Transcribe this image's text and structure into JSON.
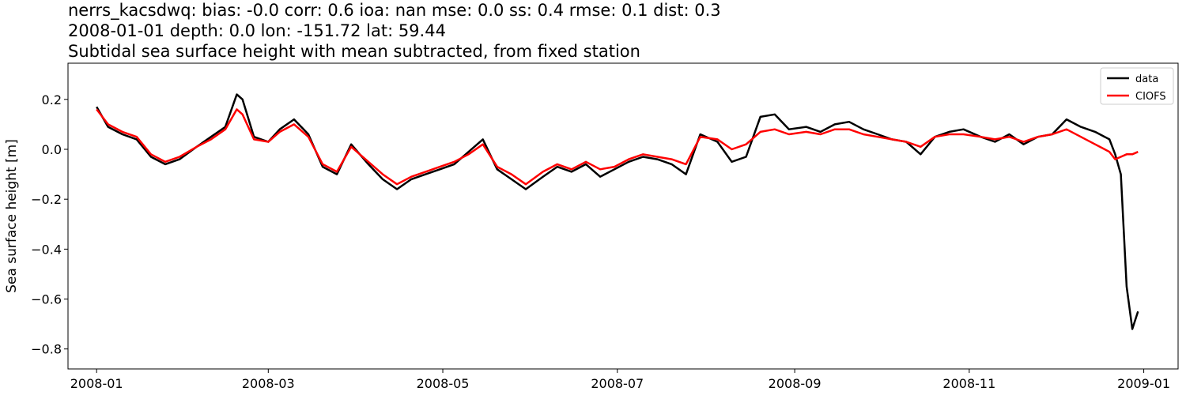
{
  "title_lines": [
    "nerrs_kacsdwq: bias: -0.0  corr: 0.6  ioa: nan  mse: 0.0  ss: 0.4  rmse: 0.1  dist: 0.3",
    "2008-01-01 depth: 0.0 lon: -151.72 lat: 59.44",
    "Subtidal sea surface height with mean subtracted, from fixed station"
  ],
  "chart_data": {
    "type": "line",
    "xlabel": "",
    "ylabel": "Sea surface height [m]",
    "xlim": [
      "2007-12-22",
      "2009-01-13"
    ],
    "ylim": [
      -0.88,
      0.345
    ],
    "x_ticks": [
      "2008-01",
      "2008-03",
      "2008-05",
      "2008-07",
      "2008-09",
      "2008-11",
      "2009-01"
    ],
    "y_ticks": [
      0.2,
      0.0,
      -0.2,
      -0.4,
      -0.6,
      -0.8
    ],
    "y_tick_labels": [
      "0.2",
      "0.0",
      "−0.2",
      "−0.4",
      "−0.6",
      "−0.8"
    ],
    "grid": false,
    "legend_position": "top-right",
    "colors": {
      "data": "#000000",
      "CIOFS": "#ff0000"
    },
    "series": [
      {
        "name": "data",
        "x": [
          "2008-01-01",
          "2008-01-05",
          "2008-01-10",
          "2008-01-15",
          "2008-01-20",
          "2008-01-25",
          "2008-01-30",
          "2008-02-05",
          "2008-02-10",
          "2008-02-15",
          "2008-02-19",
          "2008-02-21",
          "2008-02-25",
          "2008-03-01",
          "2008-03-05",
          "2008-03-10",
          "2008-03-15",
          "2008-03-20",
          "2008-03-25",
          "2008-03-30",
          "2008-04-05",
          "2008-04-10",
          "2008-04-15",
          "2008-04-20",
          "2008-04-25",
          "2008-04-30",
          "2008-05-05",
          "2008-05-10",
          "2008-05-15",
          "2008-05-20",
          "2008-05-25",
          "2008-05-30",
          "2008-06-05",
          "2008-06-10",
          "2008-06-15",
          "2008-06-20",
          "2008-06-25",
          "2008-06-30",
          "2008-07-05",
          "2008-07-10",
          "2008-07-15",
          "2008-07-20",
          "2008-07-25",
          "2008-07-30",
          "2008-08-05",
          "2008-08-10",
          "2008-08-15",
          "2008-08-20",
          "2008-08-25",
          "2008-08-30",
          "2008-09-05",
          "2008-09-10",
          "2008-09-15",
          "2008-09-20",
          "2008-09-25",
          "2008-09-30",
          "2008-10-05",
          "2008-10-10",
          "2008-10-15",
          "2008-10-20",
          "2008-10-25",
          "2008-10-30",
          "2008-11-05",
          "2008-11-10",
          "2008-11-15",
          "2008-11-20",
          "2008-11-25",
          "2008-11-30",
          "2008-12-05",
          "2008-12-10",
          "2008-12-15",
          "2008-12-20",
          "2008-12-22",
          "2008-12-24",
          "2008-12-26",
          "2008-12-28",
          "2008-12-30"
        ],
        "y": [
          0.17,
          0.09,
          0.06,
          0.04,
          -0.03,
          -0.06,
          -0.04,
          0.01,
          0.05,
          0.09,
          0.22,
          0.2,
          0.05,
          0.03,
          0.08,
          0.12,
          0.06,
          -0.07,
          -0.1,
          0.02,
          -0.06,
          -0.12,
          -0.16,
          -0.12,
          -0.1,
          -0.08,
          -0.06,
          -0.01,
          0.04,
          -0.08,
          -0.12,
          -0.16,
          -0.11,
          -0.07,
          -0.09,
          -0.06,
          -0.11,
          -0.08,
          -0.05,
          -0.03,
          -0.04,
          -0.06,
          -0.1,
          0.06,
          0.03,
          -0.05,
          -0.03,
          0.13,
          0.14,
          0.08,
          0.09,
          0.07,
          0.1,
          0.11,
          0.08,
          0.06,
          0.04,
          0.03,
          -0.02,
          0.05,
          0.07,
          0.08,
          0.05,
          0.03,
          0.06,
          0.02,
          0.05,
          0.06,
          0.12,
          0.09,
          0.07,
          0.04,
          -0.02,
          -0.1,
          -0.55,
          -0.72,
          -0.65
        ]
      },
      {
        "name": "CIOFS",
        "x": [
          "2008-01-01",
          "2008-01-05",
          "2008-01-10",
          "2008-01-15",
          "2008-01-20",
          "2008-01-25",
          "2008-01-30",
          "2008-02-05",
          "2008-02-10",
          "2008-02-15",
          "2008-02-19",
          "2008-02-21",
          "2008-02-25",
          "2008-03-01",
          "2008-03-05",
          "2008-03-10",
          "2008-03-15",
          "2008-03-20",
          "2008-03-25",
          "2008-03-30",
          "2008-04-05",
          "2008-04-10",
          "2008-04-15",
          "2008-04-20",
          "2008-04-25",
          "2008-04-30",
          "2008-05-05",
          "2008-05-10",
          "2008-05-15",
          "2008-05-20",
          "2008-05-25",
          "2008-05-30",
          "2008-06-05",
          "2008-06-10",
          "2008-06-15",
          "2008-06-20",
          "2008-06-25",
          "2008-06-30",
          "2008-07-05",
          "2008-07-10",
          "2008-07-15",
          "2008-07-20",
          "2008-07-25",
          "2008-07-30",
          "2008-08-05",
          "2008-08-10",
          "2008-08-15",
          "2008-08-20",
          "2008-08-25",
          "2008-08-30",
          "2008-09-05",
          "2008-09-10",
          "2008-09-15",
          "2008-09-20",
          "2008-09-25",
          "2008-09-30",
          "2008-10-05",
          "2008-10-10",
          "2008-10-15",
          "2008-10-20",
          "2008-10-25",
          "2008-10-30",
          "2008-11-05",
          "2008-11-10",
          "2008-11-15",
          "2008-11-20",
          "2008-11-25",
          "2008-11-30",
          "2008-12-05",
          "2008-12-10",
          "2008-12-15",
          "2008-12-20",
          "2008-12-22",
          "2008-12-24",
          "2008-12-26",
          "2008-12-28",
          "2008-12-30"
        ],
        "y": [
          0.16,
          0.1,
          0.07,
          0.05,
          -0.02,
          -0.05,
          -0.03,
          0.01,
          0.04,
          0.08,
          0.16,
          0.14,
          0.04,
          0.03,
          0.07,
          0.1,
          0.05,
          -0.06,
          -0.09,
          0.01,
          -0.05,
          -0.1,
          -0.14,
          -0.11,
          -0.09,
          -0.07,
          -0.05,
          -0.02,
          0.02,
          -0.07,
          -0.1,
          -0.14,
          -0.09,
          -0.06,
          -0.08,
          -0.05,
          -0.08,
          -0.07,
          -0.04,
          -0.02,
          -0.03,
          -0.04,
          -0.06,
          0.05,
          0.04,
          0.0,
          0.02,
          0.07,
          0.08,
          0.06,
          0.07,
          0.06,
          0.08,
          0.08,
          0.06,
          0.05,
          0.04,
          0.03,
          0.01,
          0.05,
          0.06,
          0.06,
          0.05,
          0.04,
          0.05,
          0.03,
          0.05,
          0.06,
          0.08,
          0.05,
          0.02,
          -0.01,
          -0.04,
          -0.03,
          -0.02,
          -0.02,
          -0.01
        ]
      }
    ]
  }
}
